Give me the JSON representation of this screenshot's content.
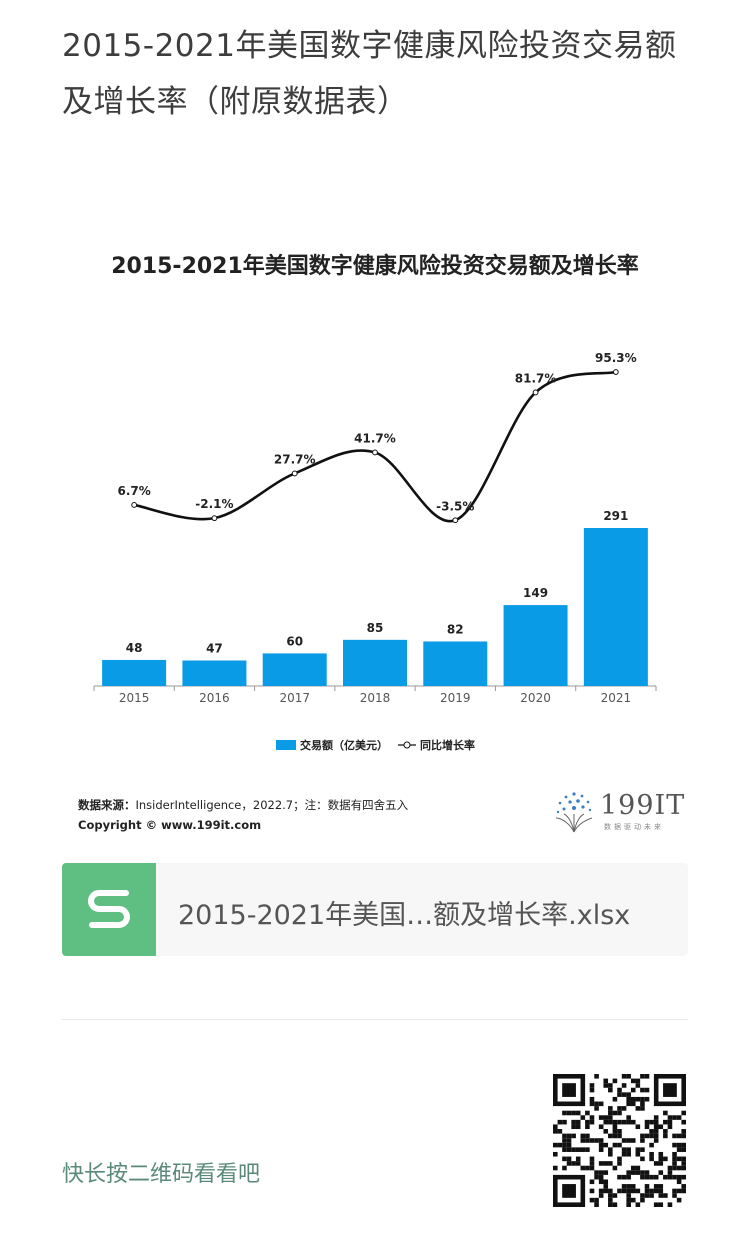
{
  "page": {
    "title": "2015-2021年美国数字健康风险投资交易额及增长率（附原数据表）"
  },
  "chart_data": {
    "type": "bar",
    "title": "2015-2021年美国数字健康风险投资交易额及增长率",
    "categories": [
      "2015",
      "2016",
      "2017",
      "2018",
      "2019",
      "2020",
      "2021"
    ],
    "series": [
      {
        "name": "交易额（亿美元）",
        "type": "bar",
        "values": [
          48,
          47,
          60,
          85,
          82,
          149,
          291
        ],
        "labels": [
          "48",
          "47",
          "60",
          "85",
          "82",
          "149",
          "291"
        ],
        "color": "#0a9be6"
      },
      {
        "name": "同比增长率",
        "type": "line",
        "values": [
          6.7,
          -2.1,
          27.7,
          41.7,
          -3.5,
          81.7,
          95.3
        ],
        "labels": [
          "6.7%",
          "-2.1%",
          "27.7%",
          "41.7%",
          "-3.5%",
          "81.7%",
          "95.3%"
        ],
        "color": "#111111"
      }
    ],
    "grid": false,
    "legend_position": "bottom"
  },
  "source": {
    "label": "数据来源：",
    "text": "InsiderIntelligence，2022.7；注：数据有四舍五入",
    "copyright": "Copyright © www.199it.com"
  },
  "brand": {
    "name": "199IT",
    "tagline": "数据驱动未来"
  },
  "file": {
    "name": "2015-2021年美国…额及增长率.xlsx"
  },
  "footer": {
    "text": "快长按二维码看看吧"
  },
  "colors": {
    "bar": "#0a9be6",
    "file_icon": "#5fbf82",
    "footer_text": "#5a8a7a"
  }
}
